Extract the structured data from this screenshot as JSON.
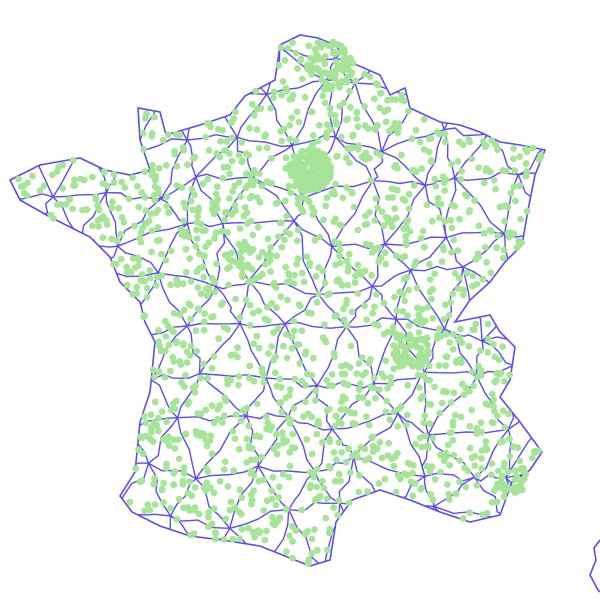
{
  "map": {
    "background_color": "#ffffff",
    "boundary_color": "#5a4cf0",
    "marker_color": "#a6e597",
    "marker_shape": "circle"
  }
}
